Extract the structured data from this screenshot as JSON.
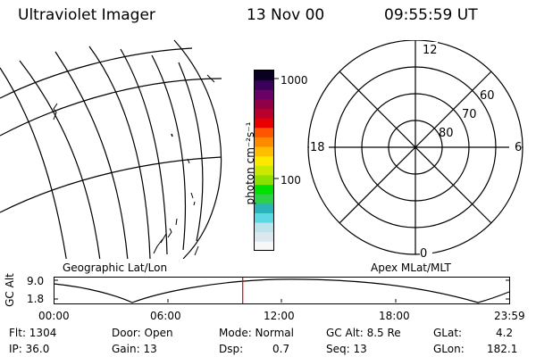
{
  "header": {
    "title": "Ultraviolet Imager",
    "date": "13 Nov 00",
    "time": "09:55:59 UT"
  },
  "colorbar": {
    "unit_label": "photon cm⁻²s⁻¹",
    "tick_top": "1000",
    "tick_mid": "100",
    "colors": [
      "#f7f7f7",
      "#dde8ee",
      "#bde4ec",
      "#5cd8e4",
      "#2ab4b8",
      "#2fd048",
      "#00e000",
      "#8ae000",
      "#cbe800",
      "#ffe800",
      "#ffbe00",
      "#ff8a00",
      "#ff5400",
      "#e80000",
      "#b8002c",
      "#900048",
      "#6a0064",
      "#3a005a",
      "#0a0020"
    ]
  },
  "map_left_label": "Geographic Lat/Lon",
  "map_right_label": "Apex MLat/MLT",
  "polar": {
    "mlt_top": "12",
    "mlt_bottom": "0",
    "mlt_left": "18",
    "mlt_right": "6",
    "lat_60": "60",
    "lat_70": "70",
    "lat_80": "80"
  },
  "timeline": {
    "ylabel": "GC Alt",
    "y_top": "9.0",
    "y_bottom": "1.8",
    "x_ticks": [
      "00:00",
      "06:00",
      "12:00",
      "18:00",
      "23:59"
    ],
    "current_time_fraction": 0.4139
  },
  "info": {
    "flt": "Flt: 1304",
    "ip": "IP: 36.0",
    "door": "Door: Open",
    "gain": "Gain: 13",
    "mode": "Mode: Normal",
    "dsp_label": "Dsp:",
    "dsp_value": "0.7",
    "gc_alt": "GC Alt: 8.5 Re",
    "seq": "Seq: 13",
    "glat_label": "GLat:",
    "glat_value": "4.2",
    "glon_label": "GLon:",
    "glon_value": "182.1"
  }
}
